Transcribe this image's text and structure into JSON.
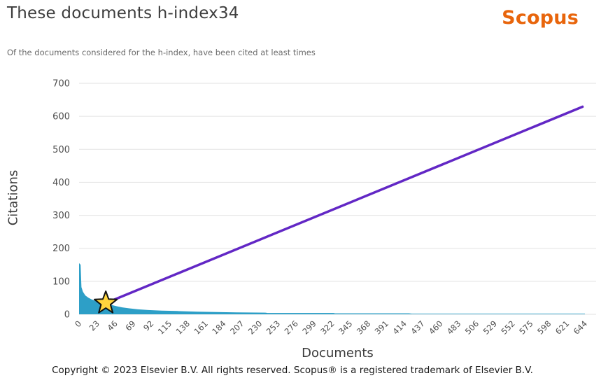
{
  "header": {
    "title": "These documents h-index34",
    "subtitle": "Of the documents considered for the h-index, have been cited at least times",
    "logo_text": "Scopus",
    "logo_color": "#e8650c"
  },
  "footer": {
    "copyright": "Copyright © 2023 Elsevier B.V. All rights reserved. Scopus® is a registered trademark of Elsevier B.V."
  },
  "chart_data": {
    "type": "area",
    "title": "These documents h-index34",
    "xlabel": "Documents",
    "ylabel": "Citations",
    "xlim": [
      0,
      644
    ],
    "ylim": [
      0,
      700
    ],
    "x_ticks": [
      0,
      23,
      46,
      69,
      92,
      115,
      138,
      161,
      184,
      207,
      230,
      253,
      276,
      299,
      322,
      345,
      368,
      391,
      414,
      437,
      460,
      483,
      506,
      529,
      552,
      575,
      598,
      621,
      644
    ],
    "y_ticks": [
      0,
      100,
      200,
      300,
      400,
      500,
      600,
      700
    ],
    "grid": "horizontal",
    "gridline_color": "#e2e2e2",
    "tick_label_color": "#4d4d4d",
    "h_index": 34,
    "series": [
      {
        "name": "citations-per-ranked-document",
        "type": "area",
        "color": "#2d9fc7",
        "points": [
          [
            0,
            155
          ],
          [
            2,
            150
          ],
          [
            3,
            82
          ],
          [
            5,
            68
          ],
          [
            8,
            57
          ],
          [
            12,
            50
          ],
          [
            16,
            45
          ],
          [
            21,
            41
          ],
          [
            26,
            38
          ],
          [
            30,
            36
          ],
          [
            34,
            34
          ],
          [
            40,
            29
          ],
          [
            47,
            25
          ],
          [
            55,
            21
          ],
          [
            64,
            18
          ],
          [
            75,
            15
          ],
          [
            88,
            13
          ],
          [
            105,
            11
          ],
          [
            125,
            10
          ],
          [
            150,
            8
          ],
          [
            175,
            7
          ],
          [
            200,
            6
          ],
          [
            237,
            5
          ],
          [
            240,
            4
          ],
          [
            324,
            4
          ],
          [
            326,
            3
          ],
          [
            420,
            3
          ],
          [
            424,
            2
          ],
          [
            644,
            2
          ]
        ]
      },
      {
        "name": "h-index-line",
        "type": "line",
        "color": "#6227c5",
        "width": 3.5,
        "points": [
          [
            34,
            34
          ],
          [
            641,
            629
          ]
        ]
      }
    ],
    "marker": {
      "type": "star",
      "label": "h-index-point",
      "x": 34,
      "y": 34,
      "fill": "#ffd53d",
      "stroke": "#111111"
    },
    "legend": "none"
  }
}
